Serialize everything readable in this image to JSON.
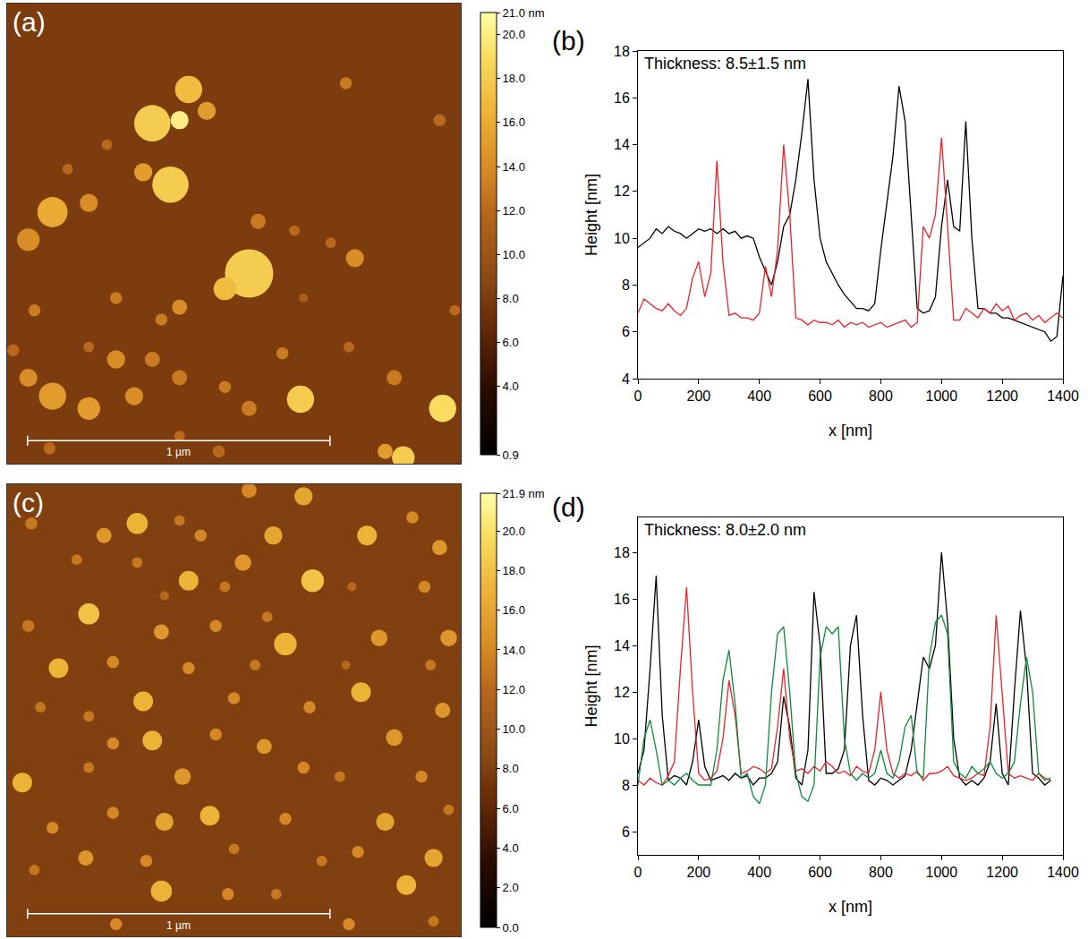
{
  "chart_data": [
    {
      "type": "image",
      "label": "(a)",
      "xlim": [
        0,
        1.5
      ],
      "ylim": [
        0,
        1.5
      ],
      "tick_labels": false,
      "grid": false,
      "background": 8.0,
      "particles": {
        "x": [
          0.6,
          0.48,
          0.57,
          0.66,
          0.54,
          0.45,
          0.8,
          0.72,
          0.15,
          0.07,
          0.27,
          0.83,
          1.12,
          1.43,
          0.2,
          0.33,
          1.15,
          0.95,
          0.57,
          0.36,
          0.51,
          1.48,
          0.98,
          0.09,
          0.36,
          0.48,
          0.27,
          0.91,
          1.13,
          0.07,
          0.15,
          0.27,
          0.42,
          0.57,
          0.72,
          0.8,
          0.97,
          1.28,
          1.44,
          1.31,
          1.25,
          0.14,
          0.57,
          0.7,
          0.02,
          1.07
        ],
        "y": [
          0.28,
          0.39,
          0.38,
          0.35,
          0.59,
          0.55,
          0.88,
          0.93,
          0.68,
          0.77,
          0.65,
          0.71,
          0.26,
          0.38,
          0.54,
          0.46,
          0.83,
          0.74,
          0.99,
          0.96,
          1.03,
          1.0,
          0.96,
          1.0,
          1.16,
          1.16,
          1.12,
          1.14,
          1.12,
          1.22,
          1.28,
          1.32,
          1.28,
          1.22,
          1.25,
          1.32,
          1.29,
          1.22,
          1.32,
          1.48,
          1.46,
          1.45,
          1.41,
          1.46,
          1.13,
          0.78
        ],
        "diameter": [
          0.09,
          0.12,
          0.06,
          0.06,
          0.12,
          0.06,
          0.16,
          0.075,
          0.1,
          0.075,
          0.06,
          0.05,
          0.04,
          0.04,
          0.035,
          0.035,
          0.06,
          0.035,
          0.05,
          0.04,
          0.04,
          0.035,
          0.03,
          0.04,
          0.06,
          0.05,
          0.035,
          0.04,
          0.035,
          0.06,
          0.09,
          0.075,
          0.06,
          0.05,
          0.04,
          0.05,
          0.09,
          0.05,
          0.09,
          0.075,
          0.05,
          0.04,
          0.035,
          0.04,
          0.04,
          0.035
        ],
        "height": [
          17,
          18,
          20,
          15,
          18,
          15,
          18,
          17,
          16,
          14,
          14,
          13,
          13,
          12,
          12,
          12,
          14,
          12,
          14,
          13,
          13,
          12,
          11,
          13,
          14,
          13,
          12,
          13,
          12,
          14,
          15,
          15,
          14,
          13,
          13,
          13,
          18,
          13,
          19,
          18,
          15,
          12,
          12,
          12,
          12,
          12
        ]
      },
      "scale_bar": {
        "length": 1,
        "label": "1 µm"
      },
      "colorbar": {
        "range": [
          0.9,
          21.0
        ],
        "ticks": [
          {
            "value": 0.9,
            "label": "0.9"
          },
          {
            "value": 4,
            "label": "4.0"
          },
          {
            "value": 6,
            "label": "6.0"
          },
          {
            "value": 8,
            "label": "8.0"
          },
          {
            "value": 10,
            "label": "10.0"
          },
          {
            "value": 12,
            "label": "12.0"
          },
          {
            "value": 14,
            "label": "14.0"
          },
          {
            "value": 16,
            "label": "16.0"
          },
          {
            "value": 18,
            "label": "18.0"
          },
          {
            "value": 20,
            "label": "20.0"
          },
          {
            "value": 21.0,
            "label": "21.0 nm"
          }
        ]
      }
    },
    {
      "type": "line",
      "label": "(b)",
      "x_label": "x [nm]",
      "y_label": "Height [nm]",
      "grid": false,
      "xlim": [
        0,
        1400
      ],
      "ylim": [
        4,
        18
      ],
      "xticks": [
        0,
        200,
        400,
        600,
        800,
        1000,
        1200,
        1400
      ],
      "yticks": [
        4,
        6,
        8,
        10,
        12,
        14,
        16,
        18
      ],
      "annotations": [
        "Thickness: 8.5±1.5 nm"
      ],
      "x": [
        0,
        20,
        40,
        60,
        80,
        100,
        120,
        140,
        160,
        180,
        200,
        220,
        240,
        260,
        280,
        300,
        320,
        340,
        360,
        380,
        400,
        420,
        440,
        460,
        480,
        500,
        520,
        540,
        560,
        580,
        600,
        620,
        640,
        660,
        680,
        700,
        720,
        740,
        760,
        780,
        800,
        820,
        840,
        860,
        880,
        900,
        920,
        940,
        960,
        980,
        1000,
        1020,
        1040,
        1060,
        1080,
        1100,
        1120,
        1140,
        1160,
        1180,
        1200,
        1220,
        1240,
        1260,
        1280,
        1300,
        1320,
        1340,
        1360,
        1380,
        1400
      ],
      "series": [
        {
          "color": "#000000",
          "values": [
            9.6,
            9.8,
            10.0,
            10.4,
            10.2,
            10.5,
            10.3,
            10.2,
            10.0,
            10.2,
            10.4,
            10.3,
            10.4,
            10.2,
            10.4,
            10.2,
            10.3,
            10.0,
            10.1,
            10.0,
            9.2,
            8.6,
            8.0,
            9.0,
            10.5,
            11.0,
            12.5,
            14.5,
            16.8,
            12.5,
            10.0,
            9.0,
            8.5,
            8.0,
            7.6,
            7.3,
            7.0,
            7.0,
            6.9,
            7.2,
            9.5,
            11.5,
            13.5,
            16.5,
            15.0,
            11.0,
            7.0,
            6.8,
            6.9,
            7.5,
            10.5,
            12.5,
            10.5,
            10.3,
            15.0,
            10.0,
            7.0,
            7.0,
            6.8,
            6.8,
            6.6,
            6.6,
            6.5,
            6.4,
            6.3,
            6.2,
            6.1,
            6.0,
            5.6,
            5.8,
            8.4
          ]
        },
        {
          "color": "#e8232a",
          "values": [
            6.8,
            7.4,
            7.2,
            7.0,
            6.9,
            7.2,
            6.9,
            6.7,
            7.0,
            8.3,
            9.0,
            7.5,
            8.5,
            13.3,
            9.0,
            6.7,
            6.8,
            6.6,
            6.6,
            6.5,
            6.8,
            8.8,
            7.5,
            9.5,
            14.0,
            11.0,
            6.6,
            6.5,
            6.3,
            6.5,
            6.4,
            6.4,
            6.3,
            6.5,
            6.2,
            6.4,
            6.3,
            6.4,
            6.2,
            6.3,
            6.4,
            6.2,
            6.3,
            6.4,
            6.5,
            6.2,
            6.4,
            10.5,
            10.0,
            11.0,
            14.3,
            10.5,
            6.5,
            6.5,
            7.0,
            6.8,
            6.6,
            7.0,
            6.8,
            7.2,
            6.9,
            7.1,
            6.5,
            6.7,
            6.8,
            6.5,
            6.7,
            6.4,
            6.6,
            6.8,
            6.6
          ]
        }
      ]
    },
    {
      "type": "image",
      "label": "(c)",
      "xlim": [
        0,
        1.5
      ],
      "ylim": [
        0,
        1.5
      ],
      "tick_labels": false,
      "grid": false,
      "background": 8.0,
      "particles": {
        "x": [
          0.8,
          0.98,
          0.43,
          0.08,
          0.32,
          0.57,
          0.64,
          0.88,
          1.19,
          1.34,
          1.43,
          0.78,
          0.23,
          0.43,
          0.72,
          1.01,
          0.6,
          1.38,
          1.14,
          0.27,
          0.52,
          0.07,
          0.51,
          0.69,
          0.86,
          0.92,
          1.23,
          1.46,
          0.17,
          0.35,
          0.6,
          0.82,
          1.12,
          1.4,
          0.45,
          0.75,
          1.17,
          0.11,
          0.27,
          1.0,
          1.44,
          0.35,
          0.48,
          0.69,
          0.85,
          1.28,
          0.05,
          0.27,
          0.58,
          0.98,
          1.1,
          1.37,
          0.15,
          0.35,
          0.52,
          0.67,
          0.92,
          1.25,
          1.46,
          0.26,
          0.46,
          0.75,
          1.04,
          1.16,
          1.41,
          0.09,
          0.51,
          0.73,
          0.89,
          1.32,
          0.36,
          1.13,
          1.41
        ],
        "y": [
          0.02,
          0.04,
          0.13,
          0.13,
          0.17,
          0.12,
          0.17,
          0.17,
          0.17,
          0.11,
          0.21,
          0.26,
          0.25,
          0.26,
          0.34,
          0.32,
          0.32,
          0.34,
          0.34,
          0.43,
          0.37,
          0.47,
          0.49,
          0.47,
          0.44,
          0.53,
          0.51,
          0.51,
          0.61,
          0.59,
          0.61,
          0.6,
          0.6,
          0.6,
          0.72,
          0.71,
          0.69,
          0.74,
          0.77,
          0.74,
          0.75,
          0.86,
          0.85,
          0.83,
          0.87,
          0.84,
          0.99,
          0.94,
          0.97,
          0.94,
          0.97,
          0.97,
          1.14,
          1.09,
          1.12,
          1.1,
          1.11,
          1.12,
          1.08,
          1.24,
          1.25,
          1.21,
          1.25,
          1.22,
          1.24,
          1.28,
          1.35,
          1.36,
          1.36,
          1.33,
          1.46,
          1.46,
          1.45
        ],
        "diameter": [
          0.05,
          0.06,
          0.07,
          0.04,
          0.05,
          0.035,
          0.04,
          0.06,
          0.065,
          0.04,
          0.05,
          0.055,
          0.035,
          0.035,
          0.035,
          0.075,
          0.065,
          0.04,
          0.03,
          0.07,
          0.03,
          0.04,
          0.05,
          0.04,
          0.035,
          0.075,
          0.055,
          0.055,
          0.065,
          0.04,
          0.04,
          0.035,
          0.03,
          0.035,
          0.065,
          0.04,
          0.065,
          0.035,
          0.035,
          0.04,
          0.05,
          0.04,
          0.065,
          0.04,
          0.05,
          0.055,
          0.065,
          0.035,
          0.055,
          0.04,
          0.035,
          0.04,
          0.04,
          0.04,
          0.06,
          0.065,
          0.04,
          0.06,
          0.035,
          0.05,
          0.04,
          0.035,
          0.035,
          0.04,
          0.06,
          0.035,
          0.07,
          0.04,
          0.035,
          0.065,
          0.04,
          0.04,
          0.035
        ],
        "height": [
          14,
          16,
          17,
          13,
          15,
          13,
          14,
          16,
          17,
          14,
          15,
          15,
          13,
          13,
          13,
          18,
          17,
          14,
          12,
          18,
          12,
          13,
          15,
          14,
          13,
          17,
          15,
          15,
          17,
          14,
          14,
          13,
          12,
          13,
          17,
          14,
          17,
          13,
          13,
          14,
          15,
          14,
          17,
          14,
          15,
          15,
          17,
          13,
          15,
          14,
          13,
          14,
          14,
          14,
          16,
          17,
          14,
          16,
          13,
          15,
          14,
          13,
          13,
          14,
          16,
          13,
          17,
          14,
          13,
          17,
          14,
          14,
          13
        ]
      },
      "scale_bar": {
        "length": 1,
        "label": "1 µm"
      },
      "colorbar": {
        "range": [
          0.0,
          21.9
        ],
        "ticks": [
          {
            "value": 0,
            "label": "0.0"
          },
          {
            "value": 2,
            "label": "2.0"
          },
          {
            "value": 4,
            "label": "4.0"
          },
          {
            "value": 6,
            "label": "6.0"
          },
          {
            "value": 8,
            "label": "8.0"
          },
          {
            "value": 10,
            "label": "10.0"
          },
          {
            "value": 12,
            "label": "12.0"
          },
          {
            "value": 14,
            "label": "14.0"
          },
          {
            "value": 16,
            "label": "16.0"
          },
          {
            "value": 18,
            "label": "18.0"
          },
          {
            "value": 20,
            "label": "20.0"
          },
          {
            "value": 21.9,
            "label": "21.9 nm"
          }
        ]
      }
    },
    {
      "type": "line",
      "label": "(d)",
      "x_label": "x [nm]",
      "y_label": "Height [nm]",
      "grid": false,
      "xlim": [
        0,
        1400
      ],
      "ylim": [
        5,
        19.5
      ],
      "xticks": [
        0,
        200,
        400,
        600,
        800,
        1000,
        1200,
        1400
      ],
      "yticks": [
        6,
        8,
        10,
        12,
        14,
        16,
        18
      ],
      "annotations": [
        "Thickness: 8.0±2.0 nm"
      ],
      "x": [
        0,
        20,
        40,
        60,
        80,
        100,
        120,
        140,
        160,
        180,
        200,
        220,
        240,
        260,
        280,
        300,
        320,
        340,
        360,
        380,
        400,
        420,
        440,
        460,
        480,
        500,
        520,
        540,
        560,
        580,
        600,
        620,
        640,
        660,
        680,
        700,
        720,
        740,
        760,
        780,
        800,
        820,
        840,
        860,
        880,
        900,
        920,
        940,
        960,
        980,
        1000,
        1020,
        1040,
        1060,
        1080,
        1100,
        1120,
        1140,
        1160,
        1180,
        1200,
        1220,
        1240,
        1260,
        1280,
        1300,
        1320,
        1340,
        1360,
        1380,
        1400
      ],
      "series": [
        {
          "color": "#000000",
          "values": [
            8.5,
            9.5,
            13.0,
            17.0,
            11.0,
            8.2,
            8.4,
            8.3,
            8.0,
            9.0,
            10.8,
            8.8,
            8.2,
            8.3,
            8.4,
            8.2,
            8.5,
            8.3,
            8.4,
            8.0,
            8.3,
            8.3,
            8.5,
            9.0,
            11.8,
            10.5,
            8.3,
            8.0,
            9.5,
            16.3,
            14.0,
            8.5,
            8.5,
            8.7,
            9.5,
            14.0,
            15.3,
            11.0,
            8.2,
            8.0,
            8.3,
            8.2,
            8.0,
            8.2,
            8.4,
            9.5,
            11.5,
            13.5,
            13.0,
            14.0,
            18.0,
            15.0,
            10.0,
            8.3,
            8.0,
            8.2,
            8.0,
            8.3,
            9.0,
            11.5,
            8.5,
            8.0,
            12.0,
            15.5,
            13.0,
            8.5,
            8.3,
            8.0,
            8.2,
            null,
            null
          ]
        },
        {
          "color": "#e8232a",
          "values": [
            8.2,
            8.0,
            8.3,
            8.1,
            8.0,
            8.4,
            9.0,
            13.0,
            16.5,
            12.0,
            8.5,
            8.2,
            8.3,
            8.6,
            10.0,
            12.5,
            11.0,
            8.5,
            8.6,
            8.8,
            8.7,
            8.5,
            8.7,
            10.5,
            13.0,
            10.0,
            8.6,
            8.7,
            8.5,
            8.8,
            8.6,
            9.0,
            8.8,
            8.5,
            8.6,
            8.4,
            8.8,
            8.6,
            8.5,
            9.5,
            12.0,
            9.5,
            8.5,
            8.3,
            8.5,
            8.4,
            8.6,
            8.2,
            8.5,
            8.5,
            8.6,
            8.8,
            8.4,
            8.3,
            8.2,
            8.3,
            8.5,
            8.4,
            10.5,
            15.3,
            12.0,
            8.5,
            8.3,
            8.4,
            8.3,
            8.2,
            8.5,
            8.3,
            8.2,
            null,
            null
          ]
        },
        {
          "color": "#0d8a3a",
          "values": [
            8.0,
            10.0,
            10.8,
            9.5,
            8.0,
            8.2,
            8.0,
            8.3,
            8.5,
            8.2,
            8.0,
            8.0,
            8.0,
            9.5,
            12.5,
            13.8,
            11.5,
            8.3,
            8.5,
            7.5,
            7.2,
            8.0,
            12.0,
            14.5,
            14.8,
            12.0,
            8.5,
            7.5,
            7.3,
            8.0,
            13.5,
            14.8,
            14.5,
            14.8,
            10.0,
            8.5,
            8.2,
            8.5,
            8.3,
            8.5,
            9.5,
            8.5,
            8.3,
            9.0,
            10.5,
            11.0,
            8.5,
            8.3,
            13.5,
            15.0,
            15.3,
            14.5,
            9.0,
            8.5,
            8.3,
            8.8,
            8.5,
            8.7,
            9.0,
            8.5,
            8.3,
            8.5,
            9.0,
            11.5,
            13.5,
            12.0,
            8.5,
            8.2,
            8.3,
            null,
            null
          ]
        }
      ]
    }
  ]
}
